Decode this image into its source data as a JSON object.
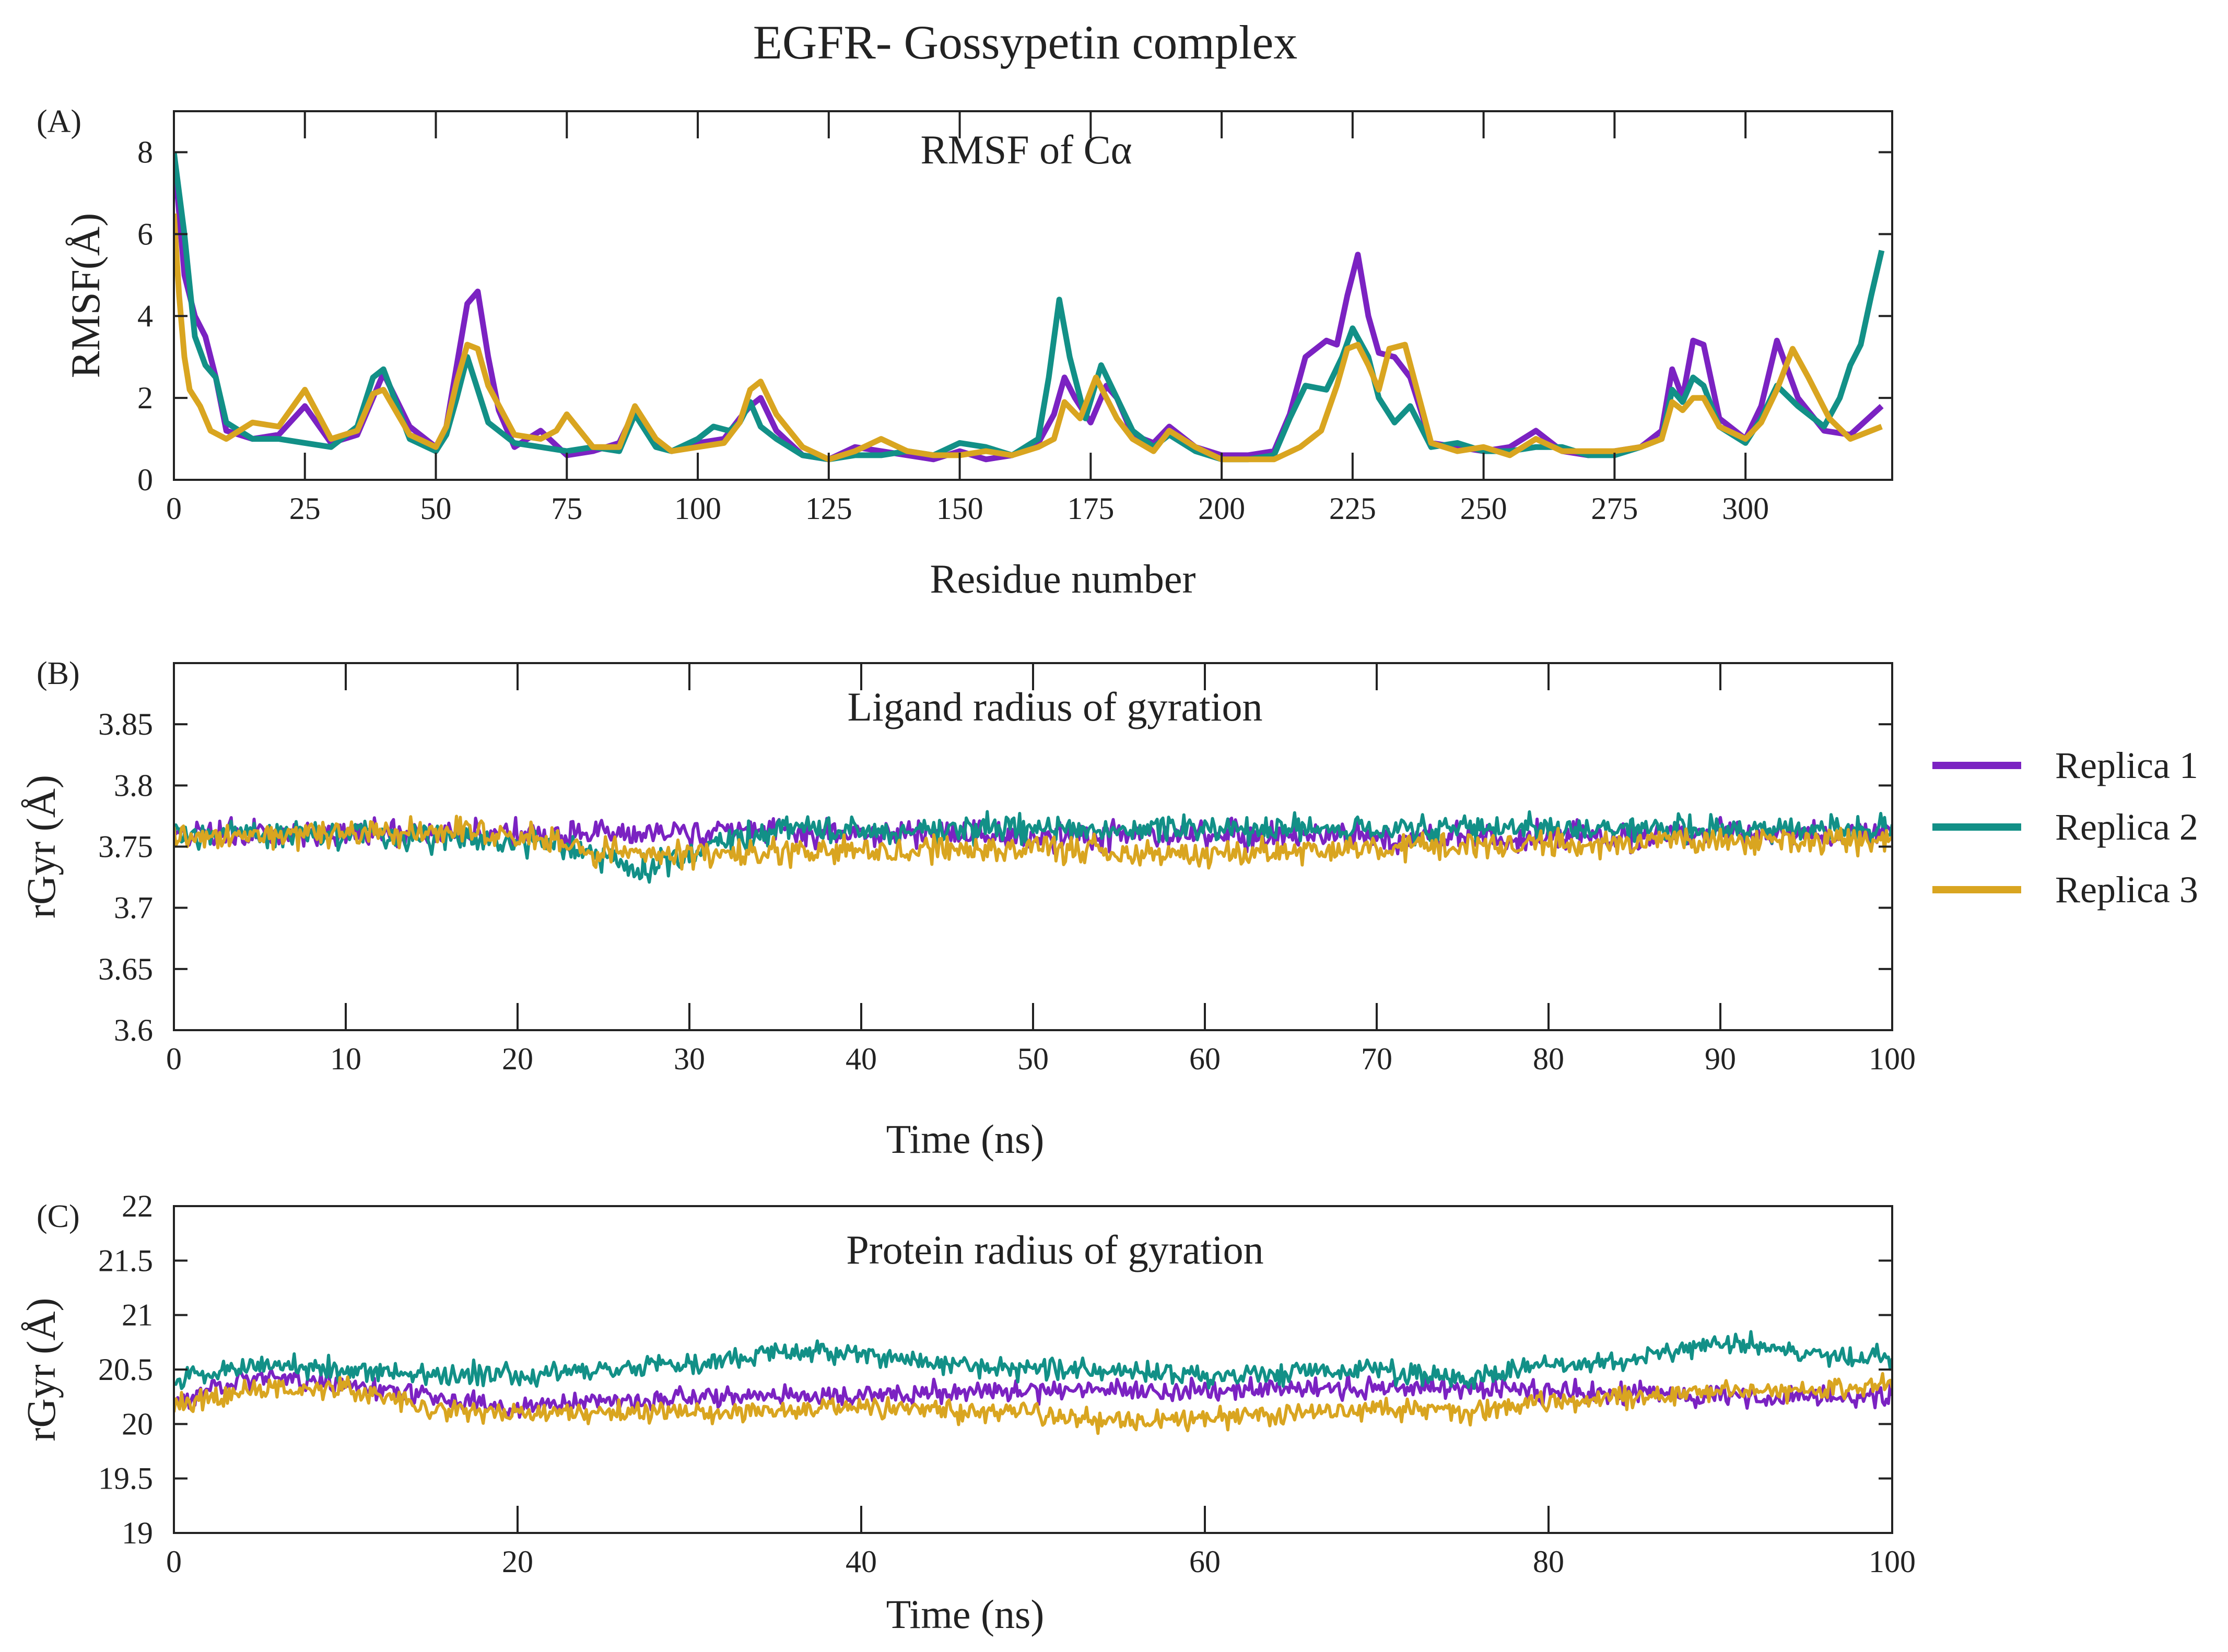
{
  "figure_title": "EGFR- Gossypetin complex",
  "series_colors": {
    "Replica 1": "#7b22c2",
    "Replica 2": "#129087",
    "Replica 3": "#d9a520"
  },
  "legend": [
    "Replica 1",
    "Replica 2",
    "Replica 3"
  ],
  "chart_data": [
    {
      "type": "line",
      "panel_label": "(A)",
      "title": "RMSF of Cα",
      "xlabel": "Residue number",
      "ylabel": "RMSF(Å)",
      "xlim": [
        0,
        328
      ],
      "ylim": [
        0,
        9
      ],
      "xticks": [
        0,
        25,
        50,
        75,
        100,
        125,
        150,
        175,
        200,
        225,
        250,
        275,
        300
      ],
      "yticks": [
        0,
        2,
        4,
        6,
        8
      ],
      "grid": false,
      "series": [
        {
          "name": "Replica 1",
          "x": [
            0,
            2,
            4,
            6,
            8,
            10,
            15,
            20,
            25,
            30,
            35,
            40,
            45,
            50,
            52,
            54,
            56,
            58,
            60,
            62,
            65,
            70,
            75,
            80,
            85,
            88,
            92,
            95,
            100,
            105,
            108,
            110,
            112,
            115,
            120,
            125,
            130,
            135,
            140,
            145,
            150,
            155,
            160,
            165,
            168,
            170,
            172,
            175,
            178,
            180,
            183,
            187,
            190,
            195,
            200,
            205,
            210,
            213,
            216,
            220,
            222,
            224,
            226,
            228,
            230,
            233,
            236,
            240,
            245,
            250,
            255,
            260,
            265,
            270,
            275,
            280,
            284,
            286,
            288,
            290,
            292,
            295,
            300,
            303,
            306,
            310,
            315,
            320,
            326
          ],
          "y": [
            8.0,
            5.0,
            4.0,
            3.5,
            2.5,
            1.2,
            1.0,
            1.1,
            1.8,
            0.9,
            1.1,
            2.6,
            1.3,
            0.8,
            1.3,
            2.8,
            4.3,
            4.6,
            3.0,
            1.7,
            0.8,
            1.2,
            0.6,
            0.7,
            0.9,
            1.7,
            0.9,
            0.7,
            0.9,
            1.0,
            1.5,
            1.8,
            2.0,
            1.2,
            0.6,
            0.5,
            0.8,
            0.7,
            0.6,
            0.5,
            0.7,
            0.5,
            0.6,
            0.9,
            1.6,
            2.5,
            2.0,
            1.4,
            2.3,
            2.0,
            1.1,
            0.9,
            1.3,
            0.8,
            0.6,
            0.6,
            0.7,
            1.6,
            3.0,
            3.4,
            3.3,
            4.5,
            5.5,
            4.0,
            3.1,
            3.0,
            2.5,
            0.9,
            0.8,
            0.7,
            0.8,
            1.2,
            0.7,
            0.6,
            0.7,
            0.8,
            1.2,
            2.7,
            2.0,
            3.4,
            3.3,
            1.5,
            1.0,
            1.8,
            3.4,
            2.0,
            1.2,
            1.1,
            1.8
          ]
        },
        {
          "name": "Replica 2",
          "x": [
            0,
            2,
            4,
            6,
            8,
            10,
            15,
            20,
            25,
            30,
            35,
            38,
            40,
            45,
            50,
            52,
            54,
            56,
            58,
            60,
            65,
            70,
            75,
            80,
            85,
            88,
            92,
            95,
            100,
            103,
            106,
            108,
            110,
            112,
            115,
            120,
            125,
            130,
            135,
            140,
            145,
            150,
            155,
            160,
            165,
            167,
            169,
            171,
            174,
            177,
            180,
            183,
            187,
            190,
            195,
            200,
            205,
            210,
            213,
            216,
            220,
            223,
            225,
            228,
            230,
            233,
            236,
            240,
            245,
            250,
            255,
            260,
            265,
            270,
            275,
            280,
            284,
            286,
            288,
            290,
            292,
            295,
            300,
            303,
            306,
            310,
            315,
            318,
            320,
            322,
            324,
            326
          ],
          "y": [
            8.0,
            6.0,
            3.5,
            2.8,
            2.5,
            1.4,
            1.0,
            1.0,
            0.9,
            0.8,
            1.3,
            2.5,
            2.7,
            1.0,
            0.7,
            1.1,
            2.0,
            3.0,
            2.2,
            1.4,
            0.9,
            0.8,
            0.7,
            0.8,
            0.7,
            1.6,
            0.8,
            0.7,
            1.0,
            1.3,
            1.2,
            1.4,
            1.9,
            1.3,
            1.0,
            0.6,
            0.5,
            0.6,
            0.6,
            0.7,
            0.6,
            0.9,
            0.8,
            0.6,
            1.0,
            2.5,
            4.4,
            3.0,
            1.5,
            2.8,
            2.0,
            1.2,
            0.8,
            1.1,
            0.7,
            0.5,
            0.5,
            0.6,
            1.5,
            2.3,
            2.2,
            3.0,
            3.7,
            3.0,
            2.0,
            1.4,
            1.8,
            0.8,
            0.9,
            0.7,
            0.7,
            0.8,
            0.8,
            0.6,
            0.6,
            0.8,
            1.0,
            2.2,
            1.9,
            2.5,
            2.3,
            1.3,
            0.9,
            1.5,
            2.3,
            1.8,
            1.3,
            2.0,
            2.8,
            3.3,
            4.5,
            5.6
          ]
        },
        {
          "name": "Replica 3",
          "x": [
            0,
            1,
            2,
            3,
            5,
            7,
            10,
            15,
            20,
            25,
            30,
            35,
            38,
            40,
            45,
            50,
            52,
            54,
            56,
            58,
            60,
            65,
            70,
            73,
            75,
            80,
            85,
            88,
            92,
            95,
            100,
            105,
            108,
            110,
            112,
            115,
            120,
            125,
            130,
            135,
            140,
            145,
            150,
            155,
            160,
            165,
            168,
            170,
            173,
            176,
            180,
            183,
            187,
            190,
            195,
            200,
            205,
            210,
            215,
            219,
            222,
            224,
            226,
            228,
            230,
            232,
            235,
            240,
            245,
            250,
            255,
            260,
            265,
            270,
            275,
            280,
            284,
            286,
            288,
            290,
            292,
            295,
            300,
            303,
            306,
            309,
            312,
            316,
            320,
            326
          ],
          "y": [
            6.5,
            4.5,
            3.0,
            2.2,
            1.8,
            1.2,
            1.0,
            1.4,
            1.3,
            2.2,
            1.0,
            1.2,
            2.1,
            2.2,
            1.1,
            0.8,
            1.3,
            2.4,
            3.3,
            3.2,
            2.3,
            1.1,
            1.0,
            1.2,
            1.6,
            0.8,
            0.8,
            1.8,
            1.0,
            0.7,
            0.8,
            0.9,
            1.4,
            2.2,
            2.4,
            1.6,
            0.8,
            0.5,
            0.7,
            1.0,
            0.7,
            0.6,
            0.6,
            0.7,
            0.6,
            0.8,
            1.0,
            1.9,
            1.5,
            2.5,
            1.5,
            1.0,
            0.7,
            1.2,
            0.8,
            0.5,
            0.5,
            0.5,
            0.8,
            1.2,
            2.3,
            3.2,
            3.3,
            2.8,
            2.2,
            3.2,
            3.3,
            0.9,
            0.7,
            0.8,
            0.6,
            1.0,
            0.7,
            0.7,
            0.7,
            0.8,
            1.0,
            1.9,
            1.7,
            2.0,
            2.0,
            1.3,
            1.0,
            1.4,
            2.2,
            3.2,
            2.5,
            1.5,
            1.0,
            1.3
          ]
        }
      ]
    },
    {
      "type": "line",
      "panel_label": "(B)",
      "title": "Ligand radius of gyration",
      "xlabel": "Time (ns)",
      "ylabel": "rGyr (Å)",
      "xlim": [
        0,
        100
      ],
      "ylim": [
        3.6,
        3.9
      ],
      "xticks": [
        0,
        10,
        20,
        30,
        40,
        50,
        60,
        70,
        80,
        90,
        100
      ],
      "yticks": [
        3.6,
        3.65,
        3.7,
        3.75,
        3.8,
        3.85
      ],
      "grid": false,
      "series": [
        {
          "name": "Replica 1",
          "x": [
            0,
            10,
            20,
            30,
            40,
            50,
            60,
            70,
            80,
            90,
            100
          ],
          "y": [
            3.76,
            3.76,
            3.76,
            3.762,
            3.762,
            3.758,
            3.76,
            3.758,
            3.758,
            3.76,
            3.76
          ]
        },
        {
          "name": "Replica 2",
          "x": [
            0,
            10,
            20,
            24,
            27,
            30,
            35,
            40,
            50,
            60,
            70,
            80,
            90,
            100
          ],
          "y": [
            3.76,
            3.76,
            3.755,
            3.745,
            3.73,
            3.745,
            3.765,
            3.762,
            3.765,
            3.763,
            3.765,
            3.765,
            3.765,
            3.765
          ]
        },
        {
          "name": "Replica 3",
          "x": [
            0,
            10,
            20,
            25,
            30,
            40,
            50,
            60,
            70,
            80,
            90,
            100
          ],
          "y": [
            3.758,
            3.762,
            3.76,
            3.745,
            3.745,
            3.745,
            3.748,
            3.745,
            3.748,
            3.752,
            3.755,
            3.755
          ]
        }
      ]
    },
    {
      "type": "line",
      "panel_label": "(C)",
      "title": "Protein radius of gyration",
      "xlabel": "Time (ns)",
      "ylabel": "rGyr (Å)",
      "xlim": [
        0,
        100
      ],
      "ylim": [
        19,
        22
      ],
      "xticks": [
        0,
        20,
        40,
        60,
        80,
        100
      ],
      "yticks": [
        19,
        19.5,
        20,
        20.5,
        21,
        21.5,
        22
      ],
      "grid": false,
      "series": [
        {
          "name": "Replica 1",
          "x": [
            0,
            5,
            10,
            15,
            20,
            30,
            40,
            50,
            60,
            70,
            80,
            90,
            100
          ],
          "y": [
            20.2,
            20.45,
            20.35,
            20.25,
            20.15,
            20.25,
            20.25,
            20.3,
            20.3,
            20.35,
            20.3,
            20.25,
            20.25
          ]
        },
        {
          "name": "Replica 2",
          "x": [
            0,
            5,
            10,
            15,
            20,
            30,
            35,
            40,
            45,
            50,
            60,
            70,
            75,
            80,
            85,
            90,
            95,
            100
          ],
          "y": [
            20.4,
            20.55,
            20.5,
            20.45,
            20.45,
            20.55,
            20.65,
            20.65,
            20.55,
            20.5,
            20.45,
            20.5,
            20.4,
            20.55,
            20.6,
            20.75,
            20.65,
            20.6
          ]
        },
        {
          "name": "Replica 3",
          "x": [
            0,
            5,
            10,
            15,
            20,
            30,
            40,
            50,
            55,
            60,
            70,
            75,
            80,
            90,
            100
          ],
          "y": [
            20.2,
            20.3,
            20.35,
            20.15,
            20.1,
            20.1,
            20.15,
            20.1,
            20.0,
            20.05,
            20.15,
            20.1,
            20.2,
            20.3,
            20.35
          ]
        }
      ]
    }
  ]
}
